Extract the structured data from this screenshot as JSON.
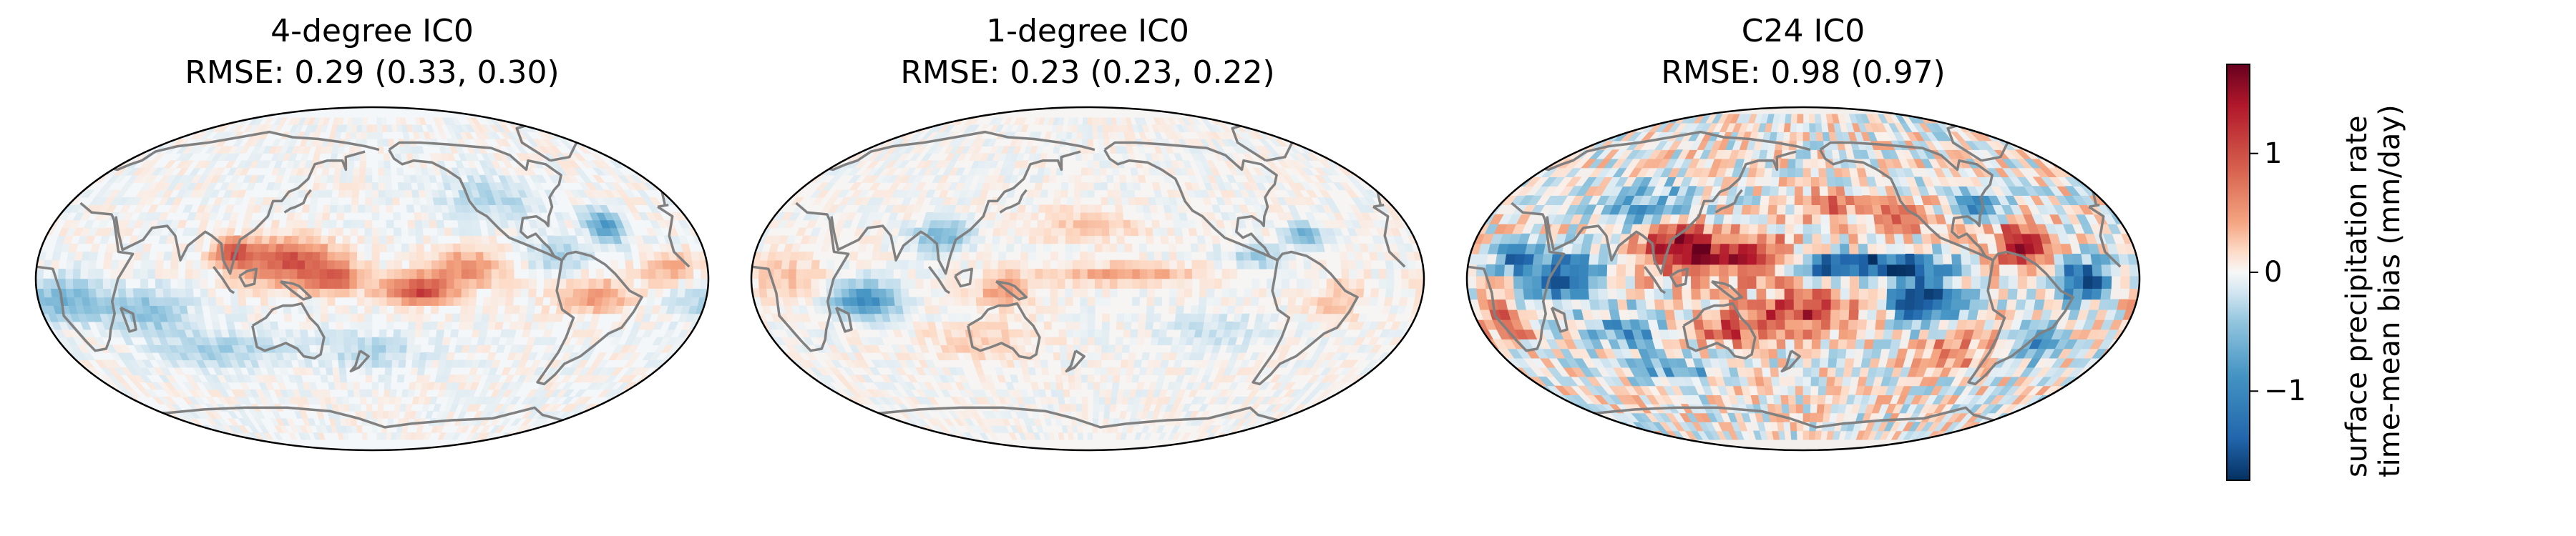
{
  "panels": [
    {
      "title": "4-degree IC0",
      "rmse": "RMSE: 0.29 (0.33, 0.30)"
    },
    {
      "title": "1-degree IC0",
      "rmse": "RMSE: 0.23 (0.23, 0.22)"
    },
    {
      "title": "C24 IC0",
      "rmse": "RMSE: 0.98 (0.97)"
    }
  ],
  "colorbar": {
    "label_line1": "surface precipitation rate",
    "label_line2": "time-mean bias (mm/day)",
    "ticks": [
      {
        "value": 1,
        "label": "1"
      },
      {
        "value": 0,
        "label": "0"
      },
      {
        "value": -1,
        "label": "−1"
      }
    ],
    "range": [
      -1.75,
      1.75
    ],
    "colormap": "RdBu_r",
    "colors": {
      "low": "#053061",
      "mid": "#f7f7f7",
      "high": "#67001f"
    }
  },
  "map": {
    "projection": "Robinson",
    "central_longitude": 180,
    "coastline_color": "#808080",
    "border_color": "#000000"
  }
}
